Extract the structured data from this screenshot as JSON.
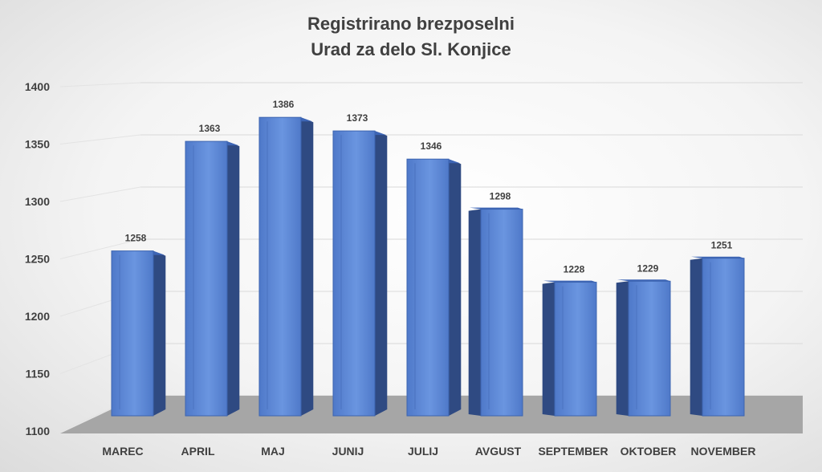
{
  "chart_data": {
    "type": "bar",
    "title": "Registrirano brezposelni",
    "subtitle": "Urad za delo Sl. Konjice",
    "categories": [
      "MAREC",
      "APRIL",
      "MAJ",
      "JUNIJ",
      "JULIJ",
      "AVGUST",
      "SEPTEMBER",
      "OKTOBER",
      "NOVEMBER"
    ],
    "values": [
      1258,
      1363,
      1386,
      1373,
      1346,
      1298,
      1228,
      1229,
      1251
    ],
    "yticks": [
      "1100",
      "1150",
      "1200",
      "1250",
      "1300",
      "1350",
      "1400"
    ],
    "ylim": [
      1100,
      1400
    ],
    "grid": true,
    "legend": "none",
    "colors": {
      "bar_front": "#5b86d6",
      "bar_side": "#2f4a82",
      "bar_top": "#3d65b5",
      "floor": "#a6a6a6"
    }
  }
}
